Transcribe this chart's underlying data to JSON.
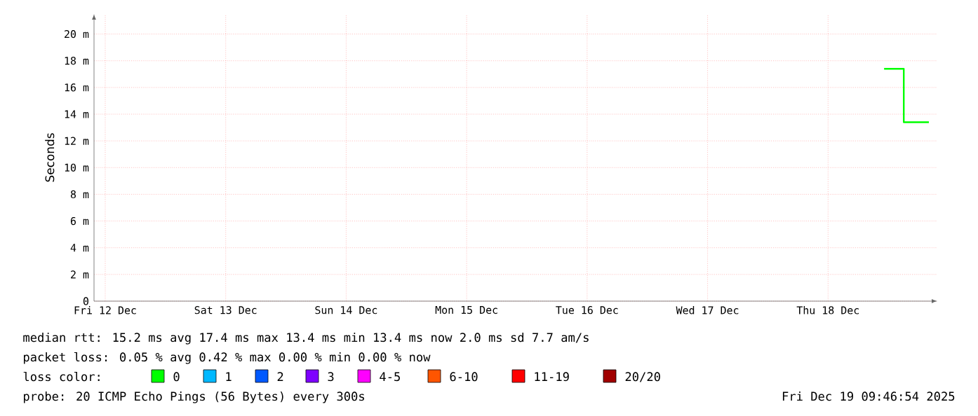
{
  "chart_data": {
    "type": "step",
    "ylabel": "Seconds",
    "x": [
      "2025-12-18T23:10",
      "2025-12-19T03:05",
      "2025-12-19T08:05"
    ],
    "series": [
      {
        "color": "#00ff00",
        "values": [
          17.4,
          13.4,
          13.4
        ]
      }
    ],
    "xlim": [
      "2025-12-12T09:46",
      "2025-12-19T09:46"
    ],
    "xticks": [
      {
        "value": "2025-12-12T12:00",
        "label": "Fri 12 Dec"
      },
      {
        "value": "2025-12-13T12:00",
        "label": "Sat 13 Dec"
      },
      {
        "value": "2025-12-14T12:00",
        "label": "Sun 14 Dec"
      },
      {
        "value": "2025-12-15T12:00",
        "label": "Mon 15 Dec"
      },
      {
        "value": "2025-12-16T12:00",
        "label": "Tue 16 Dec"
      },
      {
        "value": "2025-12-17T12:00",
        "label": "Wed 17 Dec"
      },
      {
        "value": "2025-12-18T12:00",
        "label": "Thu 18 Dec"
      }
    ],
    "ylim": [
      0,
      21.5
    ],
    "yticks": [
      0,
      {
        "value": 2,
        "label": "2 m"
      },
      {
        "value": 4,
        "label": "4 m"
      },
      {
        "value": 6,
        "label": "6 m"
      },
      {
        "value": 8,
        "label": "8 m"
      },
      {
        "value": 10,
        "label": "10 m"
      },
      {
        "value": 12,
        "label": "12 m"
      },
      {
        "value": 14,
        "label": "14 m"
      },
      {
        "value": 16,
        "label": "16 m"
      },
      {
        "value": 18,
        "label": "18 m"
      },
      {
        "value": 20,
        "label": "20 m"
      }
    ],
    "grid": true,
    "annotations": [
      "median rtt:  15.2 ms avg  17.4 ms max  13.4 ms min  13.4 ms now  2.0 ms sd  7.7   am/s",
      "packet loss: 0.05 % avg  0.42 % max  0.00 % min  0.00 % now",
      "loss color:",
      "0",
      "1",
      "2",
      "3",
      "4-5",
      "6-10",
      "11-19",
      "20/20",
      "probe:       20 ICMP Echo Pings (56 Bytes) every 300s",
      "Fri Dec 19 09:46:54 2025"
    ]
  }
}
